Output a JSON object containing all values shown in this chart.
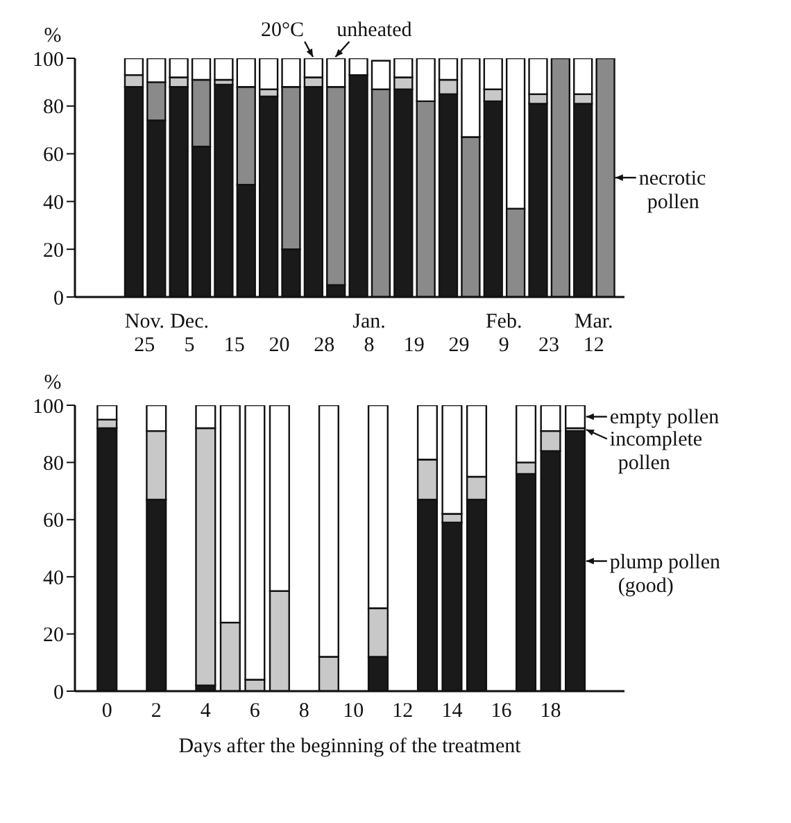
{
  "chart_data": [
    {
      "type": "bar",
      "stacked": true,
      "ylabel": "%",
      "categories": [
        "Nov.\n25",
        null,
        "Dec.\n5",
        null,
        "15",
        null,
        "20",
        null,
        "28",
        null,
        "Jan.\n8",
        null,
        "19",
        null,
        "29",
        null,
        "Feb.\n9",
        null,
        "23",
        null,
        "Mar.\n12",
        null
      ],
      "series": [
        {
          "color": "#1a1a1a",
          "values": [
            88,
            74,
            88,
            63,
            89,
            47,
            84,
            20,
            88,
            5,
            93,
            null,
            87,
            null,
            85,
            null,
            82,
            null,
            81,
            null,
            81,
            null
          ]
        },
        {
          "color": "#c8c8c8",
          "values": [
            5,
            null,
            4,
            null,
            2,
            null,
            3,
            null,
            4,
            null,
            null,
            null,
            5,
            null,
            6,
            null,
            5,
            null,
            4,
            null,
            4,
            null
          ]
        },
        {
          "name": "necrotic pollen",
          "color": "#8a8a8a",
          "values": [
            null,
            16,
            null,
            28,
            null,
            41,
            null,
            68,
            null,
            83,
            null,
            87,
            null,
            82,
            null,
            67,
            null,
            37,
            null,
            100,
            null,
            100
          ]
        },
        {
          "color": "#ffffff",
          "values": [
            7,
            10,
            8,
            9,
            9,
            12,
            13,
            12,
            8,
            12,
            7,
            12,
            8,
            18,
            9,
            33,
            13,
            63,
            15,
            null,
            15,
            null
          ]
        }
      ],
      "ylim": [
        0,
        100
      ],
      "yticks": [
        0,
        20,
        40,
        60,
        80,
        100
      ],
      "legend": "right",
      "annotations": [
        "20°C",
        "unheated"
      ]
    },
    {
      "type": "bar",
      "stacked": true,
      "ylabel": "%",
      "xlabel": "Days after the beginning of the treatment",
      "x": [
        0,
        2,
        4,
        5,
        6,
        7,
        9,
        11,
        13,
        14,
        15,
        17,
        18,
        19
      ],
      "series": [
        {
          "name": "plump pollen (good)",
          "color": "#1a1a1a",
          "values": [
            92,
            67,
            2,
            null,
            null,
            null,
            null,
            12,
            67,
            59,
            67,
            76,
            84,
            91
          ]
        },
        {
          "name": "incomplete pollen",
          "color": "#c8c8c8",
          "values": [
            3,
            24,
            90,
            24,
            4,
            35,
            12,
            17,
            14,
            3,
            8,
            4,
            7,
            1
          ]
        },
        {
          "name": "empty pollen",
          "color": "#ffffff",
          "values": [
            5,
            9,
            8,
            76,
            96,
            65,
            88,
            71,
            19,
            38,
            25,
            20,
            9,
            8
          ]
        }
      ],
      "legend": "right",
      "xlim": [
        -1.3,
        21
      ],
      "xticks": [
        0,
        2,
        4,
        6,
        8,
        10,
        12,
        14,
        16,
        18
      ],
      "ylim": [
        0,
        100
      ],
      "yticks": [
        0,
        20,
        40,
        60,
        80,
        100
      ]
    }
  ]
}
